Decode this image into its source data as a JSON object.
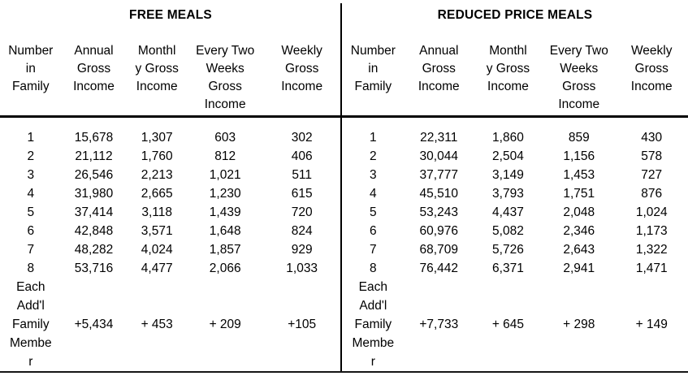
{
  "page": {
    "background_color": "#ffffff",
    "text_color": "#000000",
    "line_color": "#000000"
  },
  "tables": [
    {
      "title": "FREE MEALS",
      "columns": [
        "Number\nin\nFamily",
        "Annual\nGross\nIncome",
        "Monthl\ny Gross\nIncome",
        "Every Two\nWeeks\nGross\nIncome",
        "Weekly\nGross\nIncome"
      ],
      "rows": [
        [
          "1",
          "15,678",
          "1,307",
          "603",
          "302"
        ],
        [
          "2",
          "21,112",
          "1,760",
          "812",
          "406"
        ],
        [
          "3",
          "26,546",
          "2,213",
          "1,021",
          "511"
        ],
        [
          "4",
          "31,980",
          "2,665",
          "1,230",
          "615"
        ],
        [
          "5",
          "37,414",
          "3,118",
          "1,439",
          "720"
        ],
        [
          "6",
          "42,848",
          "3,571",
          "1,648",
          "824"
        ],
        [
          "7",
          "48,282",
          "4,024",
          "1,857",
          "929"
        ],
        [
          "8",
          "53,716",
          "4,477",
          "2,066",
          "1,033"
        ]
      ],
      "addl": {
        "label": "Each\nAdd'l\nFamily\nMembe\nr",
        "values": [
          "+5,434",
          "+ 453",
          "+ 209",
          "+105"
        ]
      }
    },
    {
      "title": "REDUCED PRICE MEALS",
      "columns": [
        "Number\nin\nFamily",
        "Annual\nGross\nIncome",
        "Monthl\ny Gross\nIncome",
        "Every Two\nWeeks\nGross\nIncome",
        "Weekly\nGross\nIncome"
      ],
      "rows": [
        [
          "1",
          "22,311",
          "1,860",
          "859",
          "430"
        ],
        [
          "2",
          "30,044",
          "2,504",
          "1,156",
          "578"
        ],
        [
          "3",
          "37,777",
          "3,149",
          "1,453",
          "727"
        ],
        [
          "4",
          "45,510",
          "3,793",
          "1,751",
          "876"
        ],
        [
          "5",
          "53,243",
          "4,437",
          "2,048",
          "1,024"
        ],
        [
          "6",
          "60,976",
          "5,082",
          "2,346",
          "1,173"
        ],
        [
          "7",
          "68,709",
          "5,726",
          "2,643",
          "1,322"
        ],
        [
          "8",
          "76,442",
          "6,371",
          "2,941",
          "1,471"
        ]
      ],
      "addl": {
        "label": "Each\nAdd'l\nFamily\nMembe\nr",
        "values": [
          "+7,733",
          "+ 645",
          "+ 298",
          "+ 149"
        ]
      }
    }
  ]
}
